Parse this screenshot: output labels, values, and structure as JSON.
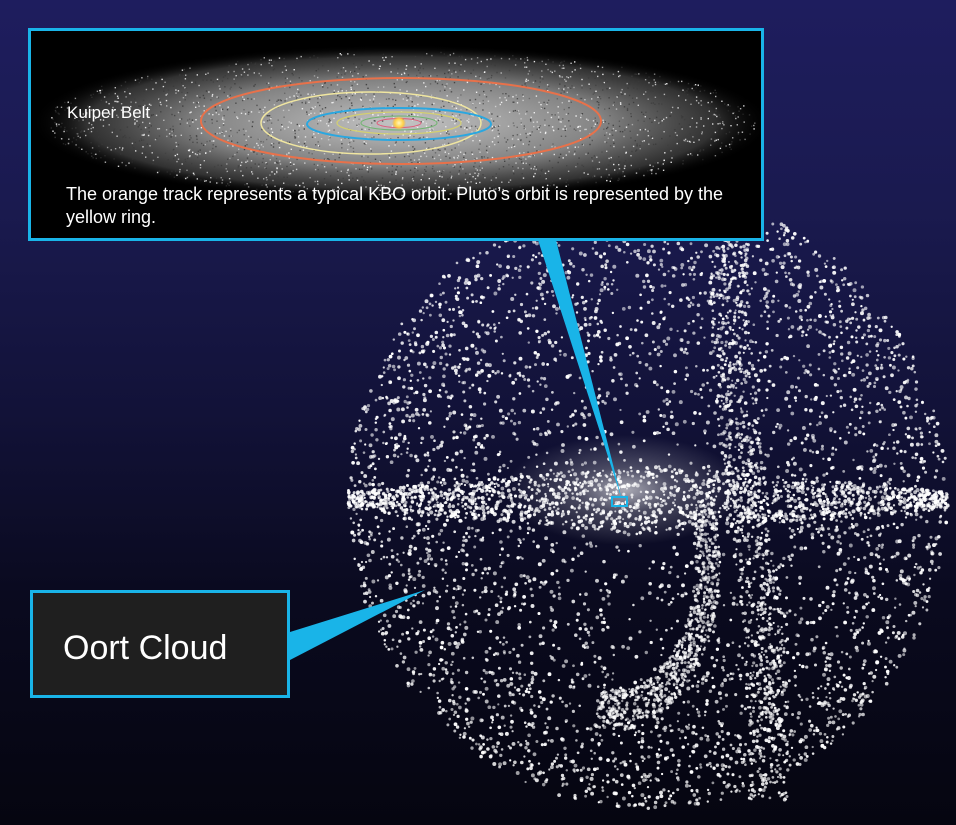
{
  "kuiper_panel": {
    "label": "Kuiper Belt",
    "caption": "The orange track represents a typical KBO orbit. Pluto’s orbit is represented by the yellow ring.",
    "orbit_colors": {
      "kbo_orbit": "#e8714a",
      "pluto_orbit": "#f0e6a0",
      "neptune_orbit": "#2aa7e0",
      "inner_orbit": "#d4d070",
      "sun": "#ffd24a"
    }
  },
  "oort_panel": {
    "label": "Oort Cloud"
  },
  "colors": {
    "callout_border": "#19b4e8",
    "background_top": "#1e1d5e",
    "background_bottom": "#050510",
    "dots": "#ffffff"
  }
}
